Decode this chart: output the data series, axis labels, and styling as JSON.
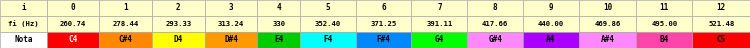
{
  "headers": [
    "i",
    "0",
    "1",
    "2",
    "3",
    "4",
    "5",
    "6",
    "7",
    "8",
    "9",
    "10",
    "11",
    "12"
  ],
  "freq_row": [
    "fi (Hz)",
    "260.74",
    "278.44",
    "293.33",
    "313.24",
    "330",
    "352.40",
    "371.25",
    "391.11",
    "417.66",
    "440.00",
    "469.86",
    "495.00",
    "521.48"
  ],
  "nota_row": [
    "Nota",
    "C4",
    "C#4",
    "D4",
    "D#4",
    "E4",
    "F4",
    "F#4",
    "G4",
    "G#4",
    "A4",
    "A#4",
    "B4",
    "C5"
  ],
  "nota_colors": [
    "#ff0000",
    "#ff8800",
    "#ffff00",
    "#ff9900",
    "#00cc00",
    "#00ffff",
    "#0088ff",
    "#00ff00",
    "#ff88ff",
    "#aa00ff",
    "#ff88ff",
    "#ff44aa",
    "#ff0000"
  ],
  "nota_text_colors": [
    "#ffffff",
    "#000000",
    "#000000",
    "#000000",
    "#000000",
    "#000000",
    "#000000",
    "#000000",
    "#000000",
    "#000000",
    "#000000",
    "#000000",
    "#000000"
  ],
  "row_bg_top": "#ffffcc",
  "row_bg_mid": "#ffffcc",
  "border_color": "#aaaaaa",
  "raw_widths": [
    46,
    52,
    52,
    52,
    52,
    42,
    55,
    55,
    55,
    55,
    55,
    57,
    55,
    57
  ]
}
